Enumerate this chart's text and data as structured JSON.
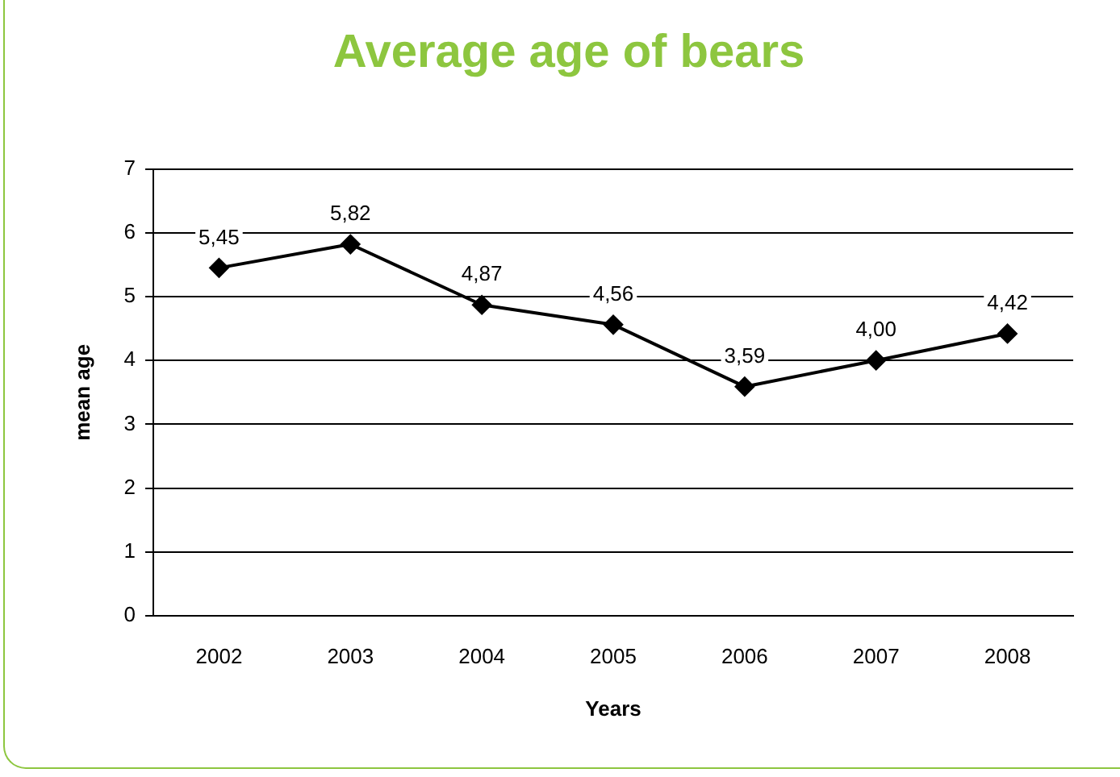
{
  "chart_data": {
    "type": "line",
    "title": "Average age of bears",
    "xlabel": "Years",
    "ylabel": "mean age",
    "categories": [
      "2002",
      "2003",
      "2004",
      "2005",
      "2006",
      "2007",
      "2008"
    ],
    "values": [
      5.45,
      5.82,
      4.87,
      4.56,
      3.59,
      4.0,
      4.42
    ],
    "value_labels": [
      "5,45",
      "5,82",
      "4,87",
      "4,56",
      "3,59",
      "4,00",
      "4,42"
    ],
    "color": "#000000",
    "ylim": [
      0,
      7
    ],
    "yticks": [
      0,
      1,
      2,
      3,
      4,
      5,
      6,
      7
    ],
    "grid": "y",
    "legend": false,
    "marker": "diamond",
    "line_style": "solid"
  }
}
